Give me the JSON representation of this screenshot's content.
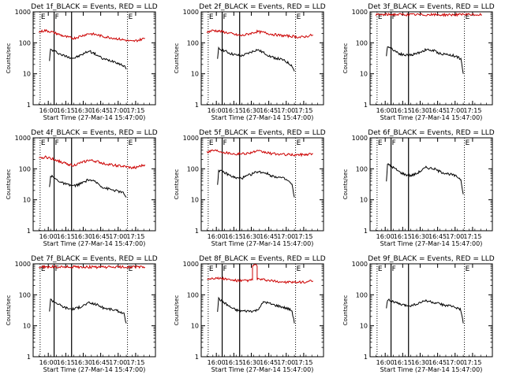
{
  "colors": {
    "background": "#ffffff",
    "events": "#000000",
    "lld": "#cc0000",
    "axes": "#000000"
  },
  "shared": {
    "xlabel": "Start Time (27-Mar-14 15:47:00)",
    "ylabel": "Counts/sec",
    "xticks": [
      "16:00",
      "16:15",
      "16:30",
      "16:45",
      "17:00",
      "17:15"
    ],
    "yticks": [
      "1",
      "10",
      "100",
      "1000"
    ],
    "markers": [
      {
        "label": "E",
        "x": "15:53",
        "style": "dotted"
      },
      {
        "label": "F",
        "x": "16:05",
        "style": "solid"
      },
      {
        "label": "",
        "x": "16:20",
        "style": "solid"
      },
      {
        "label": "E",
        "x": "17:08",
        "style": "dotted"
      }
    ]
  },
  "chart_data": [
    {
      "type": "line",
      "title": "Det 1f_BLACK = Events, RED = LLD",
      "x_units": "minutes after 15:47:00",
      "xlim": [
        0,
        105
      ],
      "ylim": [
        1,
        1000
      ],
      "yscale": "log",
      "series": [
        {
          "name": "Events",
          "color": "#000000",
          "points": [
            [
              14,
              28
            ],
            [
              15,
              60
            ],
            [
              20,
              50
            ],
            [
              25,
              40
            ],
            [
              30,
              35
            ],
            [
              35,
              32
            ],
            [
              40,
              38
            ],
            [
              48,
              55
            ],
            [
              55,
              40
            ],
            [
              60,
              30
            ],
            [
              70,
              25
            ],
            [
              75,
              20
            ],
            [
              78,
              18
            ],
            [
              80,
              14
            ]
          ]
        },
        {
          "name": "LLD",
          "color": "#cc0000",
          "points": [
            [
              5,
              220
            ],
            [
              10,
              250
            ],
            [
              15,
              230
            ],
            [
              20,
              200
            ],
            [
              25,
              170
            ],
            [
              30,
              150
            ],
            [
              35,
              140
            ],
            [
              40,
              160
            ],
            [
              48,
              200
            ],
            [
              55,
              180
            ],
            [
              60,
              160
            ],
            [
              70,
              140
            ],
            [
              80,
              120
            ],
            [
              85,
              110
            ],
            [
              90,
              120
            ],
            [
              96,
              140
            ]
          ]
        }
      ]
    },
    {
      "type": "line",
      "title": "Det 2f_BLACK = Events, RED = LLD",
      "x_units": "minutes after 15:47:00",
      "xlim": [
        0,
        105
      ],
      "ylim": [
        1,
        1000
      ],
      "yscale": "log",
      "series": [
        {
          "name": "Events",
          "color": "#000000",
          "points": [
            [
              14,
              28
            ],
            [
              15,
              65
            ],
            [
              20,
              55
            ],
            [
              25,
              45
            ],
            [
              30,
              40
            ],
            [
              35,
              38
            ],
            [
              40,
              45
            ],
            [
              48,
              60
            ],
            [
              55,
              45
            ],
            [
              60,
              35
            ],
            [
              70,
              28
            ],
            [
              75,
              22
            ],
            [
              78,
              18
            ],
            [
              80,
              12
            ]
          ]
        },
        {
          "name": "LLD",
          "color": "#cc0000",
          "points": [
            [
              5,
              220
            ],
            [
              10,
              250
            ],
            [
              15,
              240
            ],
            [
              20,
              220
            ],
            [
              25,
              200
            ],
            [
              30,
              180
            ],
            [
              35,
              170
            ],
            [
              40,
              190
            ],
            [
              48,
              230
            ],
            [
              55,
              210
            ],
            [
              60,
              190
            ],
            [
              70,
              170
            ],
            [
              80,
              160
            ],
            [
              85,
              150
            ],
            [
              90,
              160
            ],
            [
              96,
              180
            ]
          ]
        }
      ]
    },
    {
      "type": "line",
      "title": "Det 3f_BLACK = Events, RED = LLD",
      "x_units": "minutes after 15:47:00",
      "xlim": [
        0,
        105
      ],
      "ylim": [
        1,
        1000
      ],
      "yscale": "log",
      "series": [
        {
          "name": "Events",
          "color": "#000000",
          "points": [
            [
              14,
              35
            ],
            [
              15,
              80
            ],
            [
              20,
              60
            ],
            [
              25,
              45
            ],
            [
              30,
              40
            ],
            [
              35,
              40
            ],
            [
              40,
              45
            ],
            [
              48,
              60
            ],
            [
              55,
              55
            ],
            [
              60,
              45
            ],
            [
              70,
              40
            ],
            [
              75,
              35
            ],
            [
              78,
              30
            ],
            [
              80,
              10
            ]
          ]
        },
        {
          "name": "LLD",
          "color": "#cc0000",
          "points": [
            [
              5,
              800
            ],
            [
              20,
              820
            ],
            [
              40,
              810
            ],
            [
              60,
              800
            ],
            [
              80,
              810
            ],
            [
              96,
              800
            ]
          ]
        }
      ]
    },
    {
      "type": "line",
      "title": "Det 4f_BLACK = Events, RED = LLD",
      "x_units": "minutes after 15:47:00",
      "xlim": [
        0,
        105
      ],
      "ylim": [
        1,
        1000
      ],
      "yscale": "log",
      "series": [
        {
          "name": "Events",
          "color": "#000000",
          "points": [
            [
              14,
              25
            ],
            [
              15,
              60
            ],
            [
              20,
              45
            ],
            [
              25,
              35
            ],
            [
              30,
              30
            ],
            [
              35,
              28
            ],
            [
              40,
              32
            ],
            [
              48,
              45
            ],
            [
              55,
              35
            ],
            [
              60,
              25
            ],
            [
              70,
              20
            ],
            [
              75,
              18
            ],
            [
              78,
              16
            ],
            [
              80,
              12
            ]
          ]
        },
        {
          "name": "LLD",
          "color": "#cc0000",
          "points": [
            [
              5,
              210
            ],
            [
              10,
              240
            ],
            [
              15,
              220
            ],
            [
              20,
              190
            ],
            [
              25,
              160
            ],
            [
              30,
              140
            ],
            [
              35,
              130
            ],
            [
              40,
              150
            ],
            [
              48,
              190
            ],
            [
              55,
              170
            ],
            [
              60,
              150
            ],
            [
              70,
              130
            ],
            [
              80,
              115
            ],
            [
              85,
              105
            ],
            [
              90,
              115
            ],
            [
              96,
              135
            ]
          ]
        }
      ]
    },
    {
      "type": "line",
      "title": "Det 5f_BLACK = Events, RED = LLD",
      "x_units": "minutes after 15:47:00",
      "xlim": [
        0,
        105
      ],
      "ylim": [
        1,
        1000
      ],
      "yscale": "log",
      "series": [
        {
          "name": "Events",
          "color": "#000000",
          "points": [
            [
              14,
              30
            ],
            [
              15,
              90
            ],
            [
              20,
              75
            ],
            [
              25,
              60
            ],
            [
              30,
              50
            ],
            [
              35,
              50
            ],
            [
              40,
              60
            ],
            [
              48,
              80
            ],
            [
              55,
              75
            ],
            [
              60,
              60
            ],
            [
              70,
              50
            ],
            [
              75,
              40
            ],
            [
              78,
              30
            ],
            [
              80,
              12
            ]
          ]
        },
        {
          "name": "LLD",
          "color": "#cc0000",
          "points": [
            [
              5,
              350
            ],
            [
              10,
              400
            ],
            [
              15,
              380
            ],
            [
              20,
              340
            ],
            [
              25,
              320
            ],
            [
              30,
              300
            ],
            [
              40,
              320
            ],
            [
              48,
              370
            ],
            [
              55,
              340
            ],
            [
              60,
              310
            ],
            [
              70,
              290
            ],
            [
              80,
              280
            ],
            [
              90,
              290
            ],
            [
              96,
              310
            ]
          ]
        }
      ]
    },
    {
      "type": "line",
      "title": "Det 6f_BLACK = Events, RED = LLD",
      "x_units": "minutes after 15:47:00",
      "xlim": [
        0,
        105
      ],
      "ylim": [
        1,
        1000
      ],
      "yscale": "log",
      "series": [
        {
          "name": "Events",
          "color": "#000000",
          "points": [
            [
              14,
              40
            ],
            [
              15,
              140
            ],
            [
              20,
              110
            ],
            [
              25,
              80
            ],
            [
              30,
              65
            ],
            [
              35,
              60
            ],
            [
              40,
              70
            ],
            [
              48,
              110
            ],
            [
              55,
              100
            ],
            [
              60,
              80
            ],
            [
              70,
              65
            ],
            [
              75,
              55
            ],
            [
              78,
              45
            ],
            [
              80,
              15
            ]
          ]
        }
      ]
    },
    {
      "type": "line",
      "title": "Det 7f_BLACK = Events, RED = LLD",
      "x_units": "minutes after 15:47:00",
      "xlim": [
        0,
        105
      ],
      "ylim": [
        1,
        1000
      ],
      "yscale": "log",
      "series": [
        {
          "name": "Events",
          "color": "#000000",
          "points": [
            [
              14,
              30
            ],
            [
              15,
              70
            ],
            [
              20,
              55
            ],
            [
              25,
              42
            ],
            [
              30,
              36
            ],
            [
              35,
              35
            ],
            [
              40,
              40
            ],
            [
              48,
              55
            ],
            [
              55,
              48
            ],
            [
              60,
              38
            ],
            [
              70,
              32
            ],
            [
              75,
              28
            ],
            [
              78,
              24
            ],
            [
              80,
              12
            ]
          ]
        },
        {
          "name": "LLD",
          "color": "#cc0000",
          "points": [
            [
              5,
              780
            ],
            [
              20,
              800
            ],
            [
              40,
              790
            ],
            [
              60,
              780
            ],
            [
              80,
              790
            ],
            [
              96,
              780
            ]
          ]
        }
      ]
    },
    {
      "type": "line",
      "title": "Det 8f_BLACK = Events, RED = LLD",
      "x_units": "minutes after 15:47:00",
      "xlim": [
        0,
        105
      ],
      "ylim": [
        1,
        1000
      ],
      "yscale": "log",
      "series": [
        {
          "name": "Events",
          "color": "#000000",
          "points": [
            [
              14,
              30
            ],
            [
              15,
              75
            ],
            [
              20,
              55
            ],
            [
              25,
              40
            ],
            [
              30,
              32
            ],
            [
              35,
              30
            ],
            [
              40,
              30
            ],
            [
              45,
              30
            ],
            [
              48,
              32
            ],
            [
              54,
              60
            ],
            [
              60,
              50
            ],
            [
              70,
              40
            ],
            [
              75,
              35
            ],
            [
              78,
              30
            ],
            [
              80,
              12
            ]
          ]
        },
        {
          "name": "LLD",
          "color": "#cc0000",
          "points": [
            [
              5,
              320
            ],
            [
              10,
              350
            ],
            [
              15,
              340
            ],
            [
              20,
              330
            ],
            [
              25,
              300
            ],
            [
              30,
              290
            ],
            [
              35,
              280
            ],
            [
              40,
              290
            ],
            [
              44,
              300
            ],
            [
              44,
              900
            ],
            [
              48,
              900
            ],
            [
              48,
              320
            ],
            [
              55,
              300
            ],
            [
              60,
              280
            ],
            [
              70,
              260
            ],
            [
              80,
              250
            ],
            [
              90,
              260
            ],
            [
              96,
              280
            ]
          ]
        }
      ]
    },
    {
      "type": "line",
      "title": "Det 9f_BLACK = Events, RED = LLD",
      "x_units": "minutes after 15:47:00",
      "xlim": [
        0,
        105
      ],
      "ylim": [
        1,
        1000
      ],
      "yscale": "log",
      "series": [
        {
          "name": "Events",
          "color": "#000000",
          "points": [
            [
              14,
              40
            ],
            [
              15,
              70
            ],
            [
              20,
              60
            ],
            [
              25,
              50
            ],
            [
              30,
              45
            ],
            [
              35,
              45
            ],
            [
              40,
              50
            ],
            [
              48,
              65
            ],
            [
              55,
              55
            ],
            [
              60,
              50
            ],
            [
              70,
              42
            ],
            [
              75,
              38
            ],
            [
              78,
              32
            ],
            [
              80,
              12
            ]
          ]
        }
      ]
    }
  ]
}
